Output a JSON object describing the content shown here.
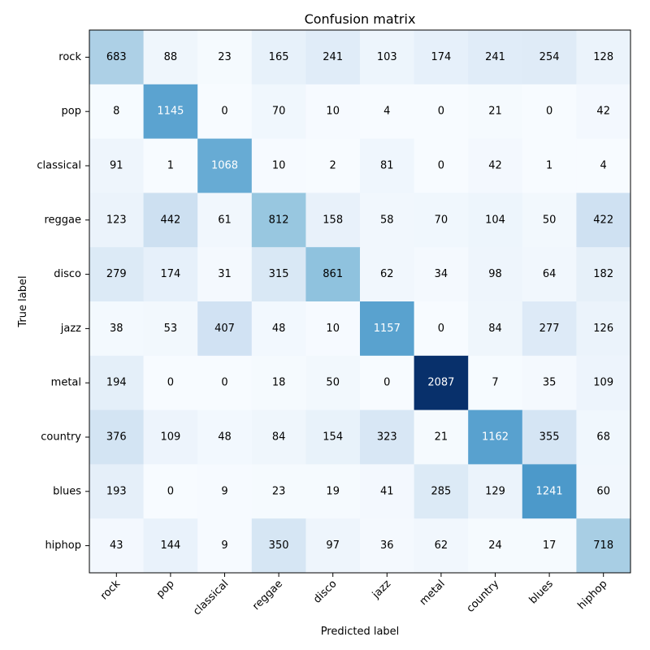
{
  "chart_data": {
    "type": "heatmap",
    "title": "Confusion matrix",
    "xlabel": "Predicted label",
    "ylabel": "True label",
    "colormap": "Blues",
    "color_low": "#f7fbff",
    "color_high": "#08306b",
    "text_dark": "#000000",
    "text_light": "#ffffff",
    "rows": [
      "rock",
      "pop",
      "classical",
      "reggae",
      "disco",
      "jazz",
      "metal",
      "country",
      "blues",
      "hiphop"
    ],
    "columns": [
      "rock",
      "pop",
      "classical",
      "reggae",
      "disco",
      "jazz",
      "metal",
      "country",
      "blues",
      "hiphop"
    ],
    "values": [
      [
        683,
        88,
        23,
        165,
        241,
        103,
        174,
        241,
        254,
        128
      ],
      [
        8,
        1145,
        0,
        70,
        10,
        4,
        0,
        21,
        0,
        42
      ],
      [
        91,
        1,
        1068,
        10,
        2,
        81,
        0,
        42,
        1,
        4
      ],
      [
        123,
        442,
        61,
        812,
        158,
        58,
        70,
        104,
        50,
        422
      ],
      [
        279,
        174,
        31,
        315,
        861,
        62,
        34,
        98,
        64,
        182
      ],
      [
        38,
        53,
        407,
        48,
        10,
        1157,
        0,
        84,
        277,
        126
      ],
      [
        194,
        0,
        0,
        18,
        50,
        0,
        2087,
        7,
        35,
        109
      ],
      [
        376,
        109,
        48,
        84,
        154,
        323,
        21,
        1162,
        355,
        68
      ],
      [
        193,
        0,
        9,
        23,
        19,
        41,
        285,
        129,
        1241,
        60
      ],
      [
        43,
        144,
        9,
        350,
        97,
        36,
        62,
        24,
        17,
        718
      ]
    ]
  }
}
